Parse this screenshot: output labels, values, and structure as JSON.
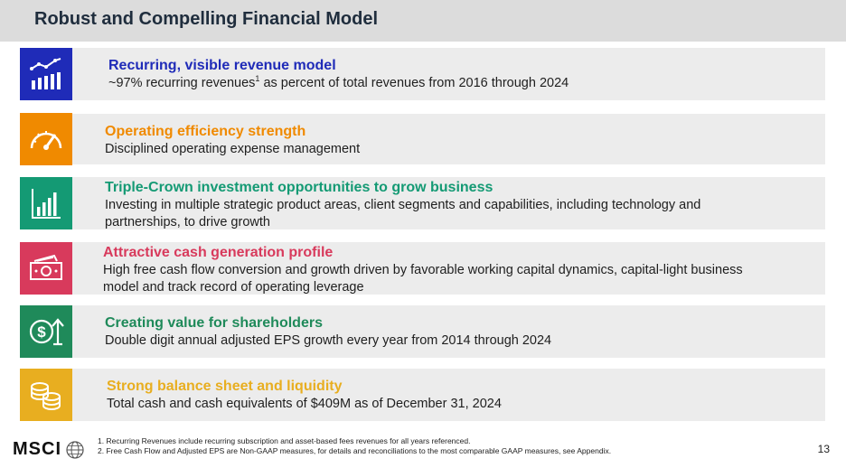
{
  "title": "Robust and Compelling Financial Model",
  "colors": {
    "blue": "#1f2bb8",
    "orange": "#f08a00",
    "teal": "#149a74",
    "crimson": "#d83a5c",
    "green": "#1f8a5a",
    "gold": "#e8ae20"
  },
  "rows": [
    {
      "icon": "bar-chart-trend-icon",
      "title": "Recurring, visible revenue model",
      "desc_pre": "~97% recurring revenues",
      "desc_sup": "1",
      "desc_post": " as percent of total revenues from 2016 through 2024"
    },
    {
      "icon": "speedometer-icon",
      "title": "Operating efficiency strength",
      "desc_line1": "Disciplined operating expense management"
    },
    {
      "icon": "bar-chart-icon",
      "title": "Triple-Crown investment opportunities to grow business",
      "desc_line1": "Investing in multiple strategic product areas, client segments and capabilities, including technology and",
      "desc_line2": "partnerships, to drive growth"
    },
    {
      "icon": "cash-icon",
      "title": "Attractive cash generation profile",
      "desc_line1": "High free cash flow conversion and growth driven by favorable working capital dynamics, capital-light business",
      "desc_line2": "model and track record of operating leverage"
    },
    {
      "icon": "dollar-growth-icon",
      "title": "Creating value for shareholders",
      "desc_line1": "Double digit annual adjusted EPS growth every year from 2014 through 2024"
    },
    {
      "icon": "coin-stack-icon",
      "title": "Strong balance sheet and liquidity",
      "desc_line1": "Total cash and cash equivalents of $409M as of December 31, 2024"
    }
  ],
  "footer": {
    "logo_text": "MSCI",
    "notes": [
      "1.  Recurring Revenues include recurring subscription and asset-based fees revenues for all years referenced.",
      "2.  Free Cash Flow and Adjusted EPS are Non-GAAP measures, for details and reconciliations to the most comparable GAAP measures, see Appendix."
    ],
    "page_number": "13"
  }
}
